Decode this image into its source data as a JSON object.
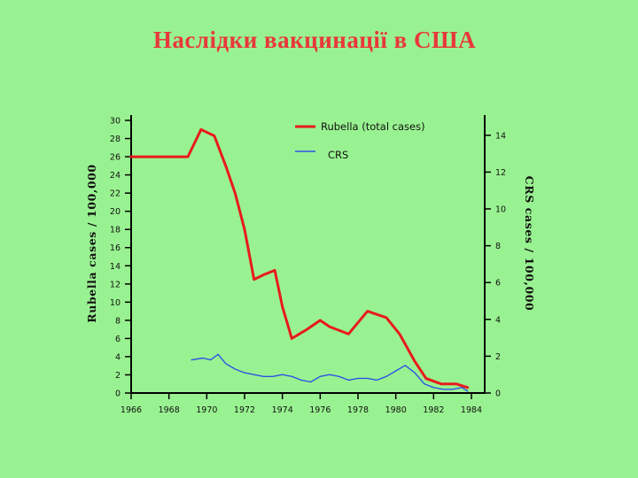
{
  "slide": {
    "title": "Наслідки вакцинації в США"
  },
  "chart_data": {
    "type": "line",
    "title": "",
    "xlabel": "",
    "ylabel": "Rubella cases / 100,000",
    "ylabel_right": "CRS cases / 100,000",
    "xlim": [
      1966,
      1984
    ],
    "ylim": [
      0,
      30
    ],
    "ylim_right": [
      0,
      15
    ],
    "x_ticks": [
      1966,
      1968,
      1970,
      1972,
      1974,
      1976,
      1978,
      1980,
      1982,
      1984
    ],
    "x_tick_labels": [
      "1966",
      "1968",
      "1970",
      "1972",
      "1974",
      "1976",
      "1978",
      "1980",
      "1982",
      "1984"
    ],
    "y_ticks": [
      0,
      2,
      4,
      6,
      8,
      10,
      12,
      14,
      16,
      18,
      20,
      22,
      24,
      26,
      28,
      30
    ],
    "y_tick_labels": [
      "0",
      "2",
      "4",
      "6",
      "8",
      "10",
      "12",
      "14",
      "16",
      "18",
      "20",
      "22",
      "24",
      "26",
      "28",
      "30"
    ],
    "y_right_ticks": [
      0,
      2,
      4,
      6,
      8,
      10,
      12,
      14
    ],
    "y_right_tick_labels": [
      "0",
      "2",
      "4",
      "6",
      "8",
      "10",
      "12",
      "14"
    ],
    "legend_position": "top-right",
    "grid": false,
    "series": [
      {
        "name": "Rubella (total cases)",
        "axis": "left",
        "color": "#e81b1b",
        "x": [
          1966,
          1967,
          1968,
          1969,
          1969.7,
          1970.4,
          1971,
          1971.5,
          1972,
          1972.5,
          1973,
          1973.6,
          1974,
          1974.5,
          1975.3,
          1976,
          1976.5,
          1977.5,
          1978.5,
          1979.5,
          1980.2,
          1981,
          1981.6,
          1982.4,
          1983.2,
          1983.8
        ],
        "y": [
          26,
          26,
          26,
          26,
          29,
          28.3,
          25,
          22,
          18,
          12.5,
          13,
          13.5,
          9.5,
          6,
          7,
          8,
          7.3,
          6.5,
          9,
          8.3,
          6.5,
          3.5,
          1.6,
          1,
          1,
          0.6
        ]
      },
      {
        "name": "CRS",
        "axis": "right",
        "color": "#2d52e6",
        "x": [
          1969.2,
          1969.8,
          1970.2,
          1970.6,
          1971,
          1971.5,
          1972,
          1972.5,
          1973,
          1973.5,
          1974,
          1974.5,
          1975,
          1975.5,
          1976,
          1976.5,
          1977,
          1977.5,
          1978,
          1978.5,
          1979,
          1979.5,
          1980,
          1980.5,
          1981,
          1981.5,
          1982,
          1982.5,
          1983,
          1983.5,
          1983.8
        ],
        "y": [
          1.8,
          1.9,
          1.8,
          2.1,
          1.6,
          1.3,
          1.1,
          1.0,
          0.9,
          0.9,
          1.0,
          0.9,
          0.7,
          0.6,
          0.9,
          1.0,
          0.9,
          0.7,
          0.8,
          0.8,
          0.7,
          0.9,
          1.2,
          1.5,
          1.1,
          0.5,
          0.3,
          0.2,
          0.2,
          0.3,
          0.1
        ]
      }
    ]
  }
}
